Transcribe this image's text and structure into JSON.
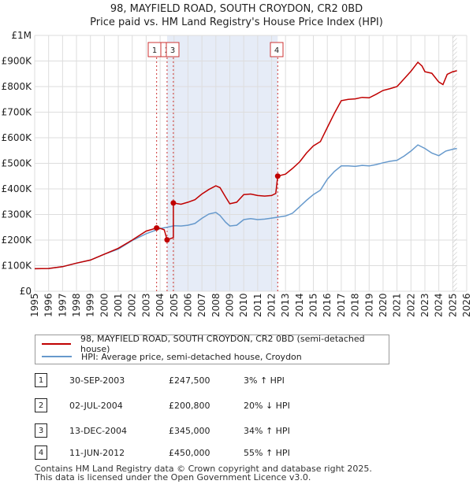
{
  "title_line1": "98, MAYFIELD ROAD, SOUTH CROYDON, CR2 0BD",
  "title_line2": "Price paid vs. HM Land Registry's House Price Index (HPI)",
  "chart_data": {
    "type": "line",
    "ylim": [
      0,
      1000000
    ],
    "xlim": [
      1995,
      2026
    ],
    "y_ticks": [
      {
        "value": 0,
        "label": "£0"
      },
      {
        "value": 100000,
        "label": "£100K"
      },
      {
        "value": 200000,
        "label": "£200K"
      },
      {
        "value": 300000,
        "label": "£300K"
      },
      {
        "value": 400000,
        "label": "£400K"
      },
      {
        "value": 500000,
        "label": "£500K"
      },
      {
        "value": 600000,
        "label": "£600K"
      },
      {
        "value": 700000,
        "label": "£700K"
      },
      {
        "value": 800000,
        "label": "£800K"
      },
      {
        "value": 900000,
        "label": "£900K"
      },
      {
        "value": 1000000,
        "label": "£1M"
      }
    ],
    "x_ticks": [
      "1995",
      "1996",
      "1997",
      "1998",
      "1999",
      "2000",
      "2001",
      "2002",
      "2003",
      "2004",
      "2005",
      "2006",
      "2007",
      "2008",
      "2009",
      "2010",
      "2011",
      "2012",
      "2013",
      "2014",
      "2015",
      "2016",
      "2017",
      "2018",
      "2019",
      "2020",
      "2021",
      "2022",
      "2023",
      "2024",
      "2025",
      "2026"
    ],
    "shaded_period": [
      2004.5,
      2012.44
    ],
    "projection_start": 2025.0,
    "series": [
      {
        "name": "98, MAYFIELD ROAD, SOUTH CROYDON, CR2 0BD (semi-detached house)",
        "color": "#c00000",
        "points": [
          [
            1995.0,
            88000
          ],
          [
            1996.0,
            89000
          ],
          [
            1997.0,
            96000
          ],
          [
            1998.0,
            110000
          ],
          [
            1999.0,
            122000
          ],
          [
            2000.0,
            145000
          ],
          [
            2001.0,
            168000
          ],
          [
            2002.0,
            200000
          ],
          [
            2003.0,
            235000
          ],
          [
            2003.75,
            247500
          ],
          [
            2004.0,
            246000
          ],
          [
            2004.3,
            240000
          ],
          [
            2004.5,
            200800
          ],
          [
            2004.7,
            205000
          ],
          [
            2004.95,
            210000
          ],
          [
            2004.95,
            345000
          ],
          [
            2005.5,
            340000
          ],
          [
            2006.0,
            348000
          ],
          [
            2006.5,
            358000
          ],
          [
            2007.0,
            380000
          ],
          [
            2007.5,
            398000
          ],
          [
            2008.0,
            412000
          ],
          [
            2008.3,
            405000
          ],
          [
            2008.7,
            368000
          ],
          [
            2009.0,
            342000
          ],
          [
            2009.5,
            348000
          ],
          [
            2010.0,
            378000
          ],
          [
            2010.5,
            380000
          ],
          [
            2011.0,
            374000
          ],
          [
            2011.5,
            372000
          ],
          [
            2012.0,
            374000
          ],
          [
            2012.3,
            382000
          ],
          [
            2012.44,
            450000
          ],
          [
            2013.0,
            458000
          ],
          [
            2013.5,
            480000
          ],
          [
            2014.0,
            505000
          ],
          [
            2014.5,
            540000
          ],
          [
            2015.0,
            568000
          ],
          [
            2015.5,
            585000
          ],
          [
            2016.0,
            640000
          ],
          [
            2016.5,
            695000
          ],
          [
            2017.0,
            745000
          ],
          [
            2017.5,
            750000
          ],
          [
            2018.0,
            752000
          ],
          [
            2018.5,
            758000
          ],
          [
            2019.0,
            756000
          ],
          [
            2019.5,
            770000
          ],
          [
            2020.0,
            785000
          ],
          [
            2020.5,
            792000
          ],
          [
            2021.0,
            800000
          ],
          [
            2021.5,
            830000
          ],
          [
            2022.0,
            860000
          ],
          [
            2022.5,
            895000
          ],
          [
            2022.8,
            880000
          ],
          [
            2023.0,
            858000
          ],
          [
            2023.5,
            852000
          ],
          [
            2024.0,
            818000
          ],
          [
            2024.3,
            808000
          ],
          [
            2024.6,
            848000
          ],
          [
            2025.0,
            858000
          ],
          [
            2025.3,
            862000
          ]
        ]
      },
      {
        "name": "HPI: Average price, semi-detached house, Croydon",
        "color": "#6699cc",
        "points": [
          [
            1995.0,
            88000
          ],
          [
            1996.0,
            89000
          ],
          [
            1997.0,
            96000
          ],
          [
            1998.0,
            110000
          ],
          [
            1999.0,
            122000
          ],
          [
            2000.0,
            145000
          ],
          [
            2001.0,
            165000
          ],
          [
            2002.0,
            198000
          ],
          [
            2003.0,
            225000
          ],
          [
            2003.75,
            240000
          ],
          [
            2004.0,
            245000
          ],
          [
            2004.5,
            250000
          ],
          [
            2005.0,
            256000
          ],
          [
            2005.5,
            255000
          ],
          [
            2006.0,
            258000
          ],
          [
            2006.5,
            265000
          ],
          [
            2007.0,
            285000
          ],
          [
            2007.5,
            302000
          ],
          [
            2008.0,
            308000
          ],
          [
            2008.3,
            296000
          ],
          [
            2008.7,
            270000
          ],
          [
            2009.0,
            255000
          ],
          [
            2009.5,
            258000
          ],
          [
            2010.0,
            280000
          ],
          [
            2010.5,
            284000
          ],
          [
            2011.0,
            280000
          ],
          [
            2011.5,
            282000
          ],
          [
            2012.0,
            286000
          ],
          [
            2012.5,
            290000
          ],
          [
            2013.0,
            294000
          ],
          [
            2013.5,
            305000
          ],
          [
            2014.0,
            330000
          ],
          [
            2014.5,
            355000
          ],
          [
            2015.0,
            378000
          ],
          [
            2015.5,
            395000
          ],
          [
            2016.0,
            438000
          ],
          [
            2016.5,
            468000
          ],
          [
            2017.0,
            490000
          ],
          [
            2017.5,
            490000
          ],
          [
            2018.0,
            488000
          ],
          [
            2018.5,
            492000
          ],
          [
            2019.0,
            490000
          ],
          [
            2019.5,
            495000
          ],
          [
            2020.0,
            502000
          ],
          [
            2020.5,
            508000
          ],
          [
            2021.0,
            512000
          ],
          [
            2021.5,
            528000
          ],
          [
            2022.0,
            548000
          ],
          [
            2022.5,
            572000
          ],
          [
            2023.0,
            558000
          ],
          [
            2023.5,
            540000
          ],
          [
            2024.0,
            530000
          ],
          [
            2024.5,
            548000
          ],
          [
            2025.0,
            555000
          ],
          [
            2025.3,
            558000
          ]
        ]
      }
    ],
    "markers": [
      {
        "label": "1",
        "x": 2003.75,
        "y": 247500
      },
      {
        "label": "2",
        "x": 2004.5,
        "y": 200800
      },
      {
        "label": "3",
        "x": 2004.95,
        "y": 345000
      },
      {
        "label": "4",
        "x": 2012.44,
        "y": 450000
      }
    ]
  },
  "legend": {
    "property_label": "98, MAYFIELD ROAD, SOUTH CROYDON, CR2 0BD (semi-detached house)",
    "hpi_label": "HPI: Average price, semi-detached house, Croydon"
  },
  "transactions": [
    {
      "num": "1",
      "date": "30-SEP-2003",
      "price": "£247,500",
      "hpi": "3% ↑ HPI"
    },
    {
      "num": "2",
      "date": "02-JUL-2004",
      "price": "£200,800",
      "hpi": "20% ↓ HPI"
    },
    {
      "num": "3",
      "date": "13-DEC-2004",
      "price": "£345,000",
      "hpi": "34% ↑ HPI"
    },
    {
      "num": "4",
      "date": "11-JUN-2012",
      "price": "£450,000",
      "hpi": "55% ↑ HPI"
    }
  ],
  "footer": {
    "line1": "Contains HM Land Registry data © Crown copyright and database right 2025.",
    "line2": "This data is licensed under the Open Government Licence v3.0."
  },
  "colors": {
    "property": "#c00000",
    "hpi": "#6699cc",
    "shade": "#e6ecf7",
    "grid": "#dddddd"
  }
}
